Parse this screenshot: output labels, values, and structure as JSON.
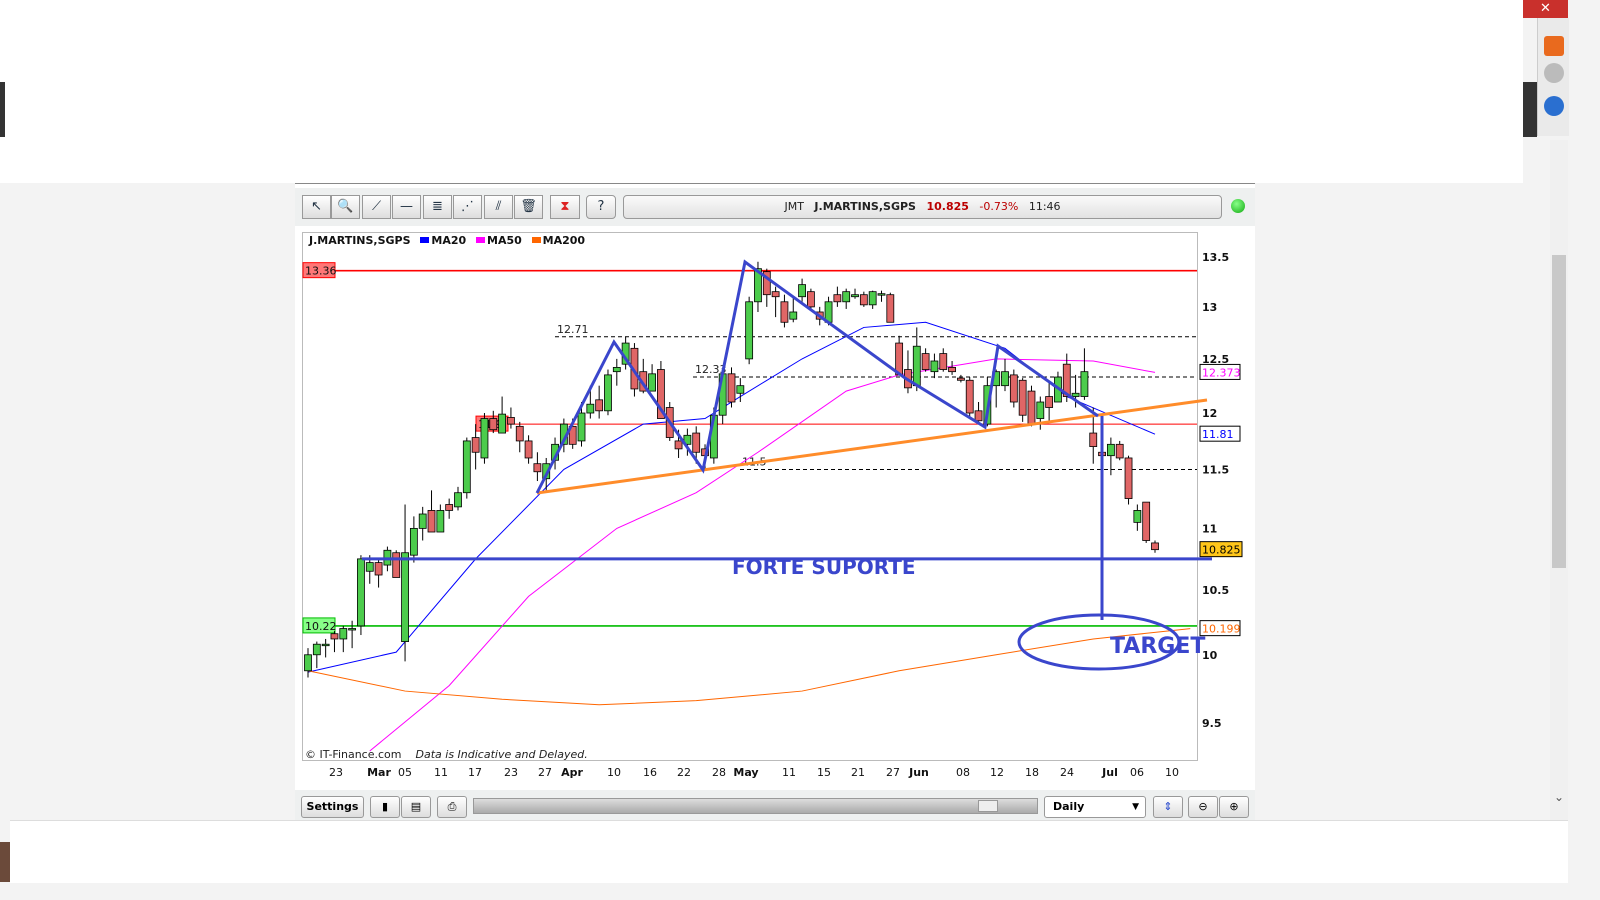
{
  "browser": {
    "close_icon": "close-icon",
    "scroll_down_icon": "chevron-down-icon"
  },
  "toolbar": {
    "tools": [
      "pointer-icon",
      "zoom-in-icon",
      "trend-line-icon",
      "horizontal-line-icon",
      "indicator-icon",
      "fibonacci-icon",
      "parallel-lines-icon",
      "trash-icon",
      "chart-type-icon",
      "help-icon"
    ],
    "quote": {
      "symbol": "JMT",
      "name": "J.MARTINS,SGPS",
      "price": "10.825",
      "change": "-0.73%",
      "time": "11:46"
    },
    "status_color": "#22aa22"
  },
  "legend": {
    "title": "J.MARTINS,SGPS",
    "items": [
      {
        "label": "MA20",
        "color": "#0000ff"
      },
      {
        "label": "MA50",
        "color": "#ff00ff"
      },
      {
        "label": "MA200",
        "color": "#ff6600"
      }
    ]
  },
  "footer_note": {
    "copyright": "© IT-Finance.com",
    "disclaimer": "Data is Indicative and Delayed."
  },
  "bottombar": {
    "settings_label": "Settings",
    "period": "Daily",
    "icons": [
      "candlestick-icon",
      "save-icon",
      "print-icon",
      "auto-scale-icon",
      "zoom-out-icon",
      "zoom-in-icon"
    ]
  },
  "chart_data": {
    "type": "candlestick",
    "title": "J.MARTINS,SGPS",
    "y_scale": "log",
    "ylim": [
      9.3,
      13.75
    ],
    "y_ticks": [
      "13.5",
      "13",
      "12.5",
      "12",
      "11.5",
      "11",
      "10.5",
      "10",
      "9.5"
    ],
    "x_tick_labels": [
      "23",
      "Mar",
      "05",
      "11",
      "17",
      "23",
      "27",
      "Apr",
      "10",
      "16",
      "22",
      "28",
      "May",
      "11",
      "15",
      "21",
      "27",
      "Jun",
      "08",
      "12",
      "18",
      "24",
      "Jul",
      "06",
      "10"
    ],
    "candle_fields": [
      "open",
      "high",
      "low",
      "close"
    ],
    "candles": [
      [
        9.88,
        10.05,
        9.83,
        10.0
      ],
      [
        10.0,
        10.1,
        9.9,
        10.08
      ],
      [
        10.07,
        10.12,
        9.98,
        10.08
      ],
      [
        10.16,
        10.18,
        10.02,
        10.12
      ],
      [
        10.12,
        10.22,
        10.02,
        10.2
      ],
      [
        10.2,
        10.26,
        10.05,
        10.2
      ],
      [
        10.22,
        10.78,
        10.15,
        10.75
      ],
      [
        10.65,
        10.78,
        10.55,
        10.72
      ],
      [
        10.72,
        10.75,
        10.52,
        10.62
      ],
      [
        10.7,
        10.85,
        10.65,
        10.82
      ],
      [
        10.8,
        10.82,
        10.6,
        10.6
      ],
      [
        10.1,
        11.2,
        9.95,
        10.8
      ],
      [
        10.78,
        11.1,
        10.72,
        11.0
      ],
      [
        11.0,
        11.18,
        10.9,
        11.12
      ],
      [
        11.15,
        11.32,
        11.0,
        10.97
      ],
      [
        10.97,
        11.2,
        10.97,
        11.15
      ],
      [
        11.2,
        11.25,
        11.08,
        11.15
      ],
      [
        11.18,
        11.35,
        11.15,
        11.3
      ],
      [
        11.3,
        11.78,
        11.25,
        11.75
      ],
      [
        11.78,
        11.9,
        11.5,
        11.65
      ],
      [
        11.6,
        12.0,
        11.55,
        11.95
      ],
      [
        11.95,
        12.02,
        11.82,
        11.85
      ],
      [
        11.82,
        12.15,
        11.82,
        11.99
      ],
      [
        11.96,
        12.05,
        11.86,
        11.9
      ],
      [
        11.88,
        11.92,
        11.65,
        11.75
      ],
      [
        11.75,
        11.8,
        11.55,
        11.6
      ],
      [
        11.55,
        11.65,
        11.4,
        11.48
      ],
      [
        11.42,
        11.6,
        11.32,
        11.55
      ],
      [
        11.58,
        11.78,
        11.5,
        11.72
      ],
      [
        11.72,
        11.95,
        11.65,
        11.9
      ],
      [
        11.88,
        11.95,
        11.68,
        11.72
      ],
      [
        11.75,
        12.1,
        11.7,
        12.0
      ],
      [
        12.0,
        12.25,
        11.95,
        12.08
      ],
      [
        12.12,
        12.25,
        11.95,
        12.02
      ],
      [
        12.02,
        12.4,
        11.98,
        12.35
      ],
      [
        12.38,
        12.5,
        12.25,
        12.42
      ],
      [
        12.45,
        12.71,
        12.4,
        12.65
      ],
      [
        12.6,
        12.65,
        12.15,
        12.22
      ],
      [
        12.38,
        12.5,
        12.18,
        12.2
      ],
      [
        12.2,
        12.45,
        12.2,
        12.36
      ],
      [
        12.4,
        12.48,
        11.95,
        11.95
      ],
      [
        12.05,
        12.1,
        11.75,
        11.78
      ],
      [
        11.75,
        11.85,
        11.6,
        11.68
      ],
      [
        11.72,
        11.86,
        11.62,
        11.8
      ],
      [
        11.82,
        11.88,
        11.55,
        11.65
      ],
      [
        11.68,
        11.72,
        11.5,
        11.62
      ],
      [
        11.6,
        12.05,
        11.55,
        11.98
      ],
      [
        11.98,
        12.4,
        11.9,
        12.36
      ],
      [
        12.36,
        12.42,
        12.05,
        12.1
      ],
      [
        12.18,
        12.32,
        12.1,
        12.25
      ],
      [
        12.5,
        13.1,
        12.45,
        13.05
      ],
      [
        13.05,
        13.45,
        12.95,
        13.38
      ],
      [
        13.35,
        13.38,
        13.0,
        13.12
      ],
      [
        13.15,
        13.2,
        12.9,
        13.1
      ],
      [
        13.05,
        13.12,
        12.8,
        12.85
      ],
      [
        12.88,
        13.1,
        12.85,
        12.95
      ],
      [
        13.1,
        13.28,
        13.05,
        13.22
      ],
      [
        13.15,
        13.18,
        12.98,
        13.0
      ],
      [
        12.95,
        13.0,
        12.82,
        12.88
      ],
      [
        12.85,
        13.1,
        12.82,
        13.05
      ],
      [
        13.12,
        13.2,
        13.0,
        13.05
      ],
      [
        13.05,
        13.18,
        12.98,
        13.15
      ],
      [
        13.1,
        13.18,
        13.08,
        13.12
      ],
      [
        13.12,
        13.15,
        13.0,
        13.02
      ],
      [
        13.02,
        13.16,
        12.98,
        13.15
      ],
      [
        13.13,
        13.16,
        13.05,
        13.13
      ],
      [
        13.12,
        13.14,
        12.85,
        12.85
      ],
      [
        12.65,
        12.72,
        12.35,
        12.35
      ],
      [
        12.4,
        12.58,
        12.18,
        12.23
      ],
      [
        12.25,
        12.8,
        12.2,
        12.62
      ],
      [
        12.55,
        12.6,
        12.38,
        12.4
      ],
      [
        12.38,
        12.55,
        12.32,
        12.48
      ],
      [
        12.55,
        12.6,
        12.38,
        12.4
      ],
      [
        12.42,
        12.48,
        12.35,
        12.38
      ],
      [
        12.32,
        12.35,
        12.28,
        12.3
      ],
      [
        12.3,
        12.33,
        11.95,
        12.0
      ],
      [
        12.02,
        12.1,
        11.9,
        11.93
      ],
      [
        11.9,
        12.33,
        11.88,
        12.25
      ],
      [
        12.25,
        12.4,
        12.05,
        12.38
      ],
      [
        12.25,
        12.5,
        12.2,
        12.38
      ],
      [
        12.35,
        12.4,
        12.05,
        12.1
      ],
      [
        12.3,
        12.32,
        11.92,
        11.98
      ],
      [
        12.2,
        12.25,
        11.88,
        11.9
      ],
      [
        11.95,
        12.15,
        11.85,
        12.1
      ],
      [
        12.15,
        12.28,
        11.92,
        12.05
      ],
      [
        12.1,
        12.38,
        12.1,
        12.33
      ],
      [
        12.45,
        12.55,
        12.1,
        12.15
      ],
      [
        12.15,
        12.35,
        12.05,
        12.18
      ],
      [
        12.15,
        12.6,
        12.12,
        12.38
      ],
      [
        11.82,
        12.05,
        11.55,
        11.7
      ],
      [
        11.65,
        11.68,
        11.52,
        11.62
      ],
      [
        11.62,
        11.78,
        11.45,
        11.72
      ],
      [
        11.72,
        11.75,
        11.58,
        11.6
      ],
      [
        11.6,
        11.62,
        11.2,
        11.25
      ],
      [
        11.05,
        11.2,
        10.98,
        11.15
      ],
      [
        11.22,
        11.22,
        10.88,
        10.9
      ],
      [
        10.88,
        10.9,
        10.8,
        10.825
      ]
    ],
    "up_color": "#4ccc4c",
    "down_color": "#e06666",
    "moving_averages": [
      {
        "name": "MA20",
        "color": "#0000ff",
        "last": "11.81",
        "points": [
          [
            0,
            9.87
          ],
          [
            10,
            10.02
          ],
          [
            19,
            10.75
          ],
          [
            29,
            11.5
          ],
          [
            38,
            11.9
          ],
          [
            45,
            11.95
          ],
          [
            49,
            12.15
          ],
          [
            56,
            12.5
          ],
          [
            63,
            12.8
          ],
          [
            70,
            12.85
          ],
          [
            79,
            12.6
          ],
          [
            86,
            12.15
          ],
          [
            96,
            11.81
          ]
        ]
      },
      {
        "name": "MA50",
        "color": "#ff00ff",
        "last": "12.373",
        "points": [
          [
            7,
            9.3
          ],
          [
            16,
            9.77
          ],
          [
            25,
            10.45
          ],
          [
            35,
            11.0
          ],
          [
            44,
            11.3
          ],
          [
            51,
            11.65
          ],
          [
            61,
            12.2
          ],
          [
            67,
            12.35
          ],
          [
            78,
            12.5
          ],
          [
            89,
            12.48
          ],
          [
            96,
            12.373
          ]
        ]
      },
      {
        "name": "MA200",
        "color": "#ff6600",
        "last": "10.199",
        "points": [
          [
            0,
            9.88
          ],
          [
            11,
            9.73
          ],
          [
            22,
            9.67
          ],
          [
            33,
            9.63
          ],
          [
            44,
            9.66
          ],
          [
            56,
            9.73
          ],
          [
            67,
            9.88
          ],
          [
            78,
            10.0
          ],
          [
            89,
            10.12
          ],
          [
            100,
            10.199
          ]
        ]
      }
    ],
    "last_price": "10.825",
    "horizontal_levels": [
      {
        "value": 13.36,
        "label": "13.36",
        "color": "#ff0000",
        "style": "solid"
      },
      {
        "value": 11.9,
        "label": "11.9",
        "color": "#ff0000",
        "style": "thin"
      },
      {
        "value": 10.22,
        "label": "10.22",
        "color": "#00bb00",
        "style": "solid"
      },
      {
        "value": 12.71,
        "label": "12.71",
        "color": "#000000",
        "style": "dashed"
      },
      {
        "value": 12.33,
        "label": "12.33",
        "color": "#000000",
        "style": "dashed"
      },
      {
        "value": 11.5,
        "label": "11.5",
        "color": "#000000",
        "style": "dashed"
      }
    ],
    "annotations": {
      "support_label": "FORTE SUPORTE",
      "support_value": 10.75,
      "target_label": "TARGET",
      "annotation_color": "#3a46cc",
      "trendline_color": "#ff8c2a"
    }
  }
}
